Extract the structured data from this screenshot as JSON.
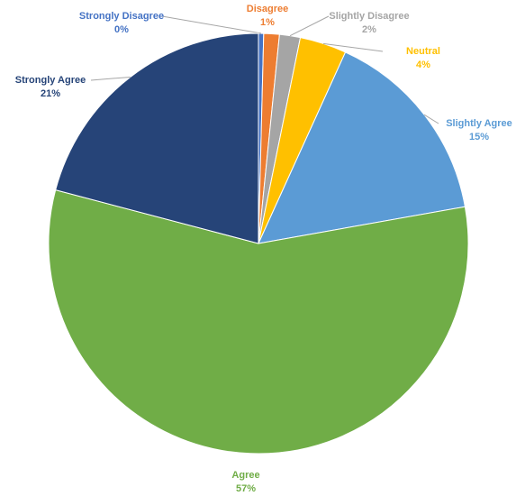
{
  "chart_data": {
    "type": "pie",
    "categories": [
      "Strongly Disagree",
      "Disagree",
      "Slightly Disagree",
      "Neutral",
      "Slightly Agree",
      "Agree",
      "Strongly Agree"
    ],
    "values": [
      0.4,
      1.2,
      1.6,
      3.6,
      15.4,
      56.9,
      20.9
    ],
    "value_labels": [
      "0%",
      "1%",
      "2%",
      "4%",
      "15%",
      "57%",
      "21%"
    ],
    "colors": [
      "#4472c4",
      "#ed7d31",
      "#a5a5a5",
      "#ffc000",
      "#5b9bd5",
      "#70ad47",
      "#264478"
    ]
  }
}
